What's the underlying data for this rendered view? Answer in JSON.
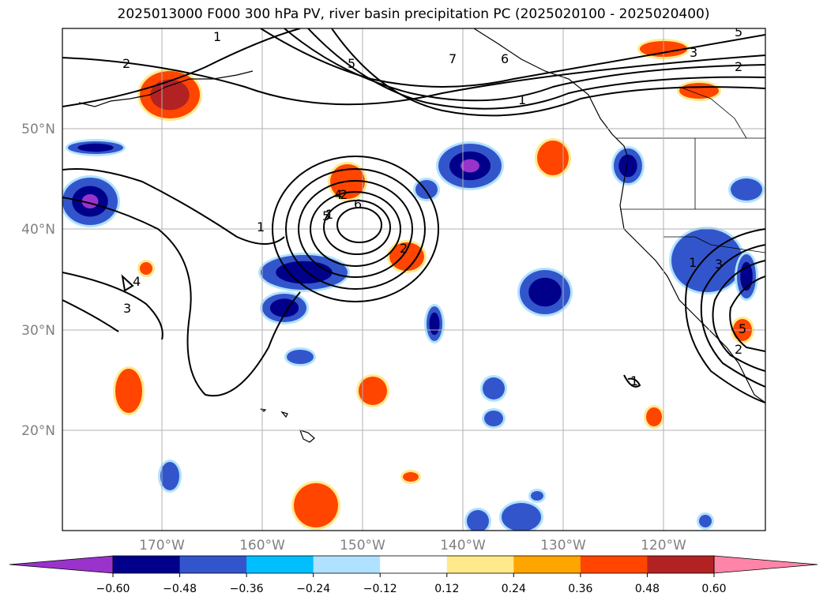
{
  "title": "2025013000 F000 300 hPa PV, river basin precipitation PC (2025020100 - 2025020400)",
  "map": {
    "lat_labels": [
      "50°N",
      "40°N",
      "30°N",
      "20°N"
    ],
    "lon_labels": [
      "170°W",
      "160°W",
      "150°W",
      "140°W",
      "130°W",
      "120°W"
    ],
    "pv_contour_labels": [
      "1",
      "2",
      "5",
      "7",
      "6",
      "1",
      "3",
      "2",
      "5",
      "1",
      "2",
      "1",
      "4",
      "5",
      "6",
      "2",
      "4",
      "3",
      "1",
      "3",
      "5",
      "2",
      "1"
    ]
  },
  "colorbar": {
    "ticks": [
      "−0.60",
      "−0.48",
      "−0.36",
      "−0.24",
      "−0.12",
      "0.12",
      "0.24",
      "0.36",
      "0.48",
      "0.60"
    ],
    "colors": [
      "#9933cc",
      "#00008b",
      "#3355cc",
      "#00bfff",
      "#b0e2ff",
      "#ffffff",
      "#ffe98a",
      "#ffa500",
      "#ff4500",
      "#b22222",
      "#ff85a8"
    ]
  }
}
